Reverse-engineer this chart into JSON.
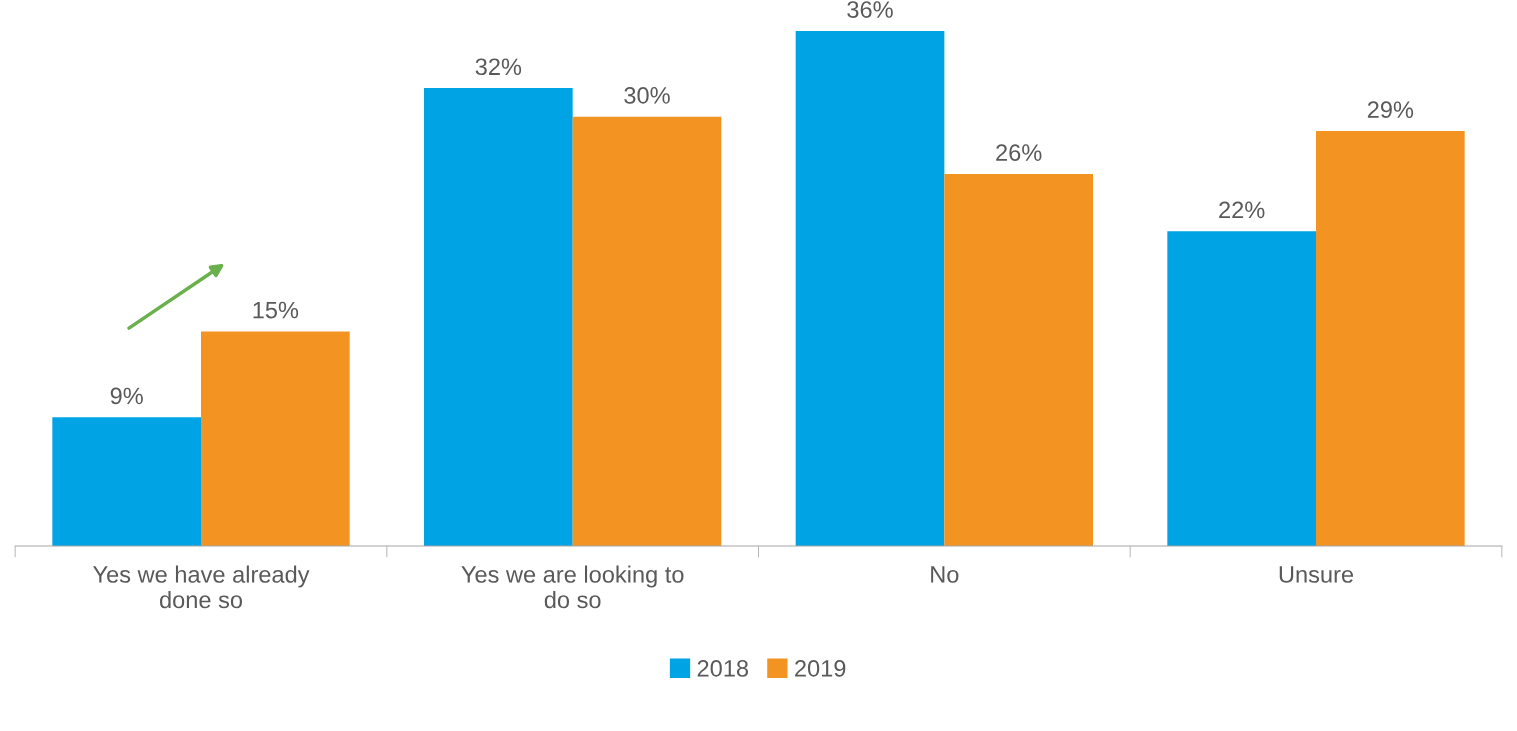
{
  "chart_data": {
    "type": "bar",
    "categories": [
      "Yes we have already\ndone so",
      "Yes we are looking to\ndo so",
      "No",
      "Unsure"
    ],
    "series": [
      {
        "name": "2018",
        "color": "#00a3e3",
        "values": [
          9,
          32,
          36,
          22
        ],
        "value_labels": [
          "9%",
          "32%",
          "36%",
          "22%"
        ]
      },
      {
        "name": "2019",
        "color": "#f39322",
        "values": [
          15,
          30,
          26,
          29
        ],
        "value_labels": [
          "15%",
          "30%",
          "26%",
          "29%"
        ]
      }
    ],
    "tick_labels": "x",
    "grid": false,
    "legend": "bottom"
  }
}
